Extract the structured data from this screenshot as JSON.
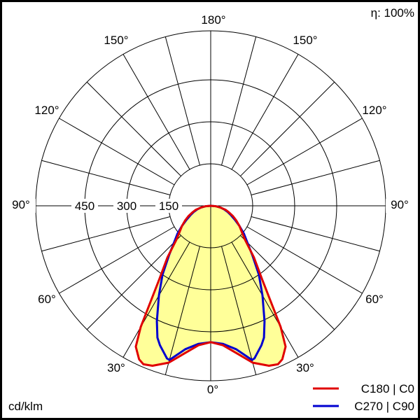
{
  "chart_data": {
    "type": "polar",
    "efficiency_label": "η: 100%",
    "unit_label": "cd/klm",
    "angle_labels": {
      "top": "180°",
      "upper": "150°",
      "mid_upper": "120°",
      "side": "90°",
      "mid_lower": "60°",
      "lower": "30°",
      "bottom": "0°"
    },
    "radial_ticks": [
      150,
      300,
      450
    ],
    "radial_tick_labels": [
      "150",
      "300",
      "450"
    ],
    "angle_step_deg": 15,
    "series": [
      {
        "name": "C180 | C0",
        "color": "#e00000",
        "gamma": [
          0,
          5,
          10,
          15,
          20,
          23,
          25,
          28,
          30,
          35,
          40,
          45,
          50,
          55,
          60,
          65,
          70,
          75,
          80,
          85,
          90
        ],
        "values": [
          487,
          500,
          535,
          580,
          608,
          615,
          605,
          570,
          500,
          320,
          240,
          175,
          145,
          125,
          106,
          88,
          70,
          55,
          35,
          18,
          0
        ]
      },
      {
        "name": "C270 | C90",
        "color": "#0000d0",
        "gamma": [
          0,
          5,
          10,
          15,
          16,
          20,
          22,
          25,
          30,
          35,
          40,
          45,
          50,
          55,
          60,
          65,
          70,
          75,
          80,
          85,
          90
        ],
        "values": [
          487,
          495,
          520,
          570,
          567,
          530,
          508,
          455,
          370,
          300,
          232,
          185,
          155,
          125,
          100,
          80,
          65,
          50,
          35,
          18,
          0
        ]
      }
    ],
    "fill_color": "#ffff99"
  }
}
